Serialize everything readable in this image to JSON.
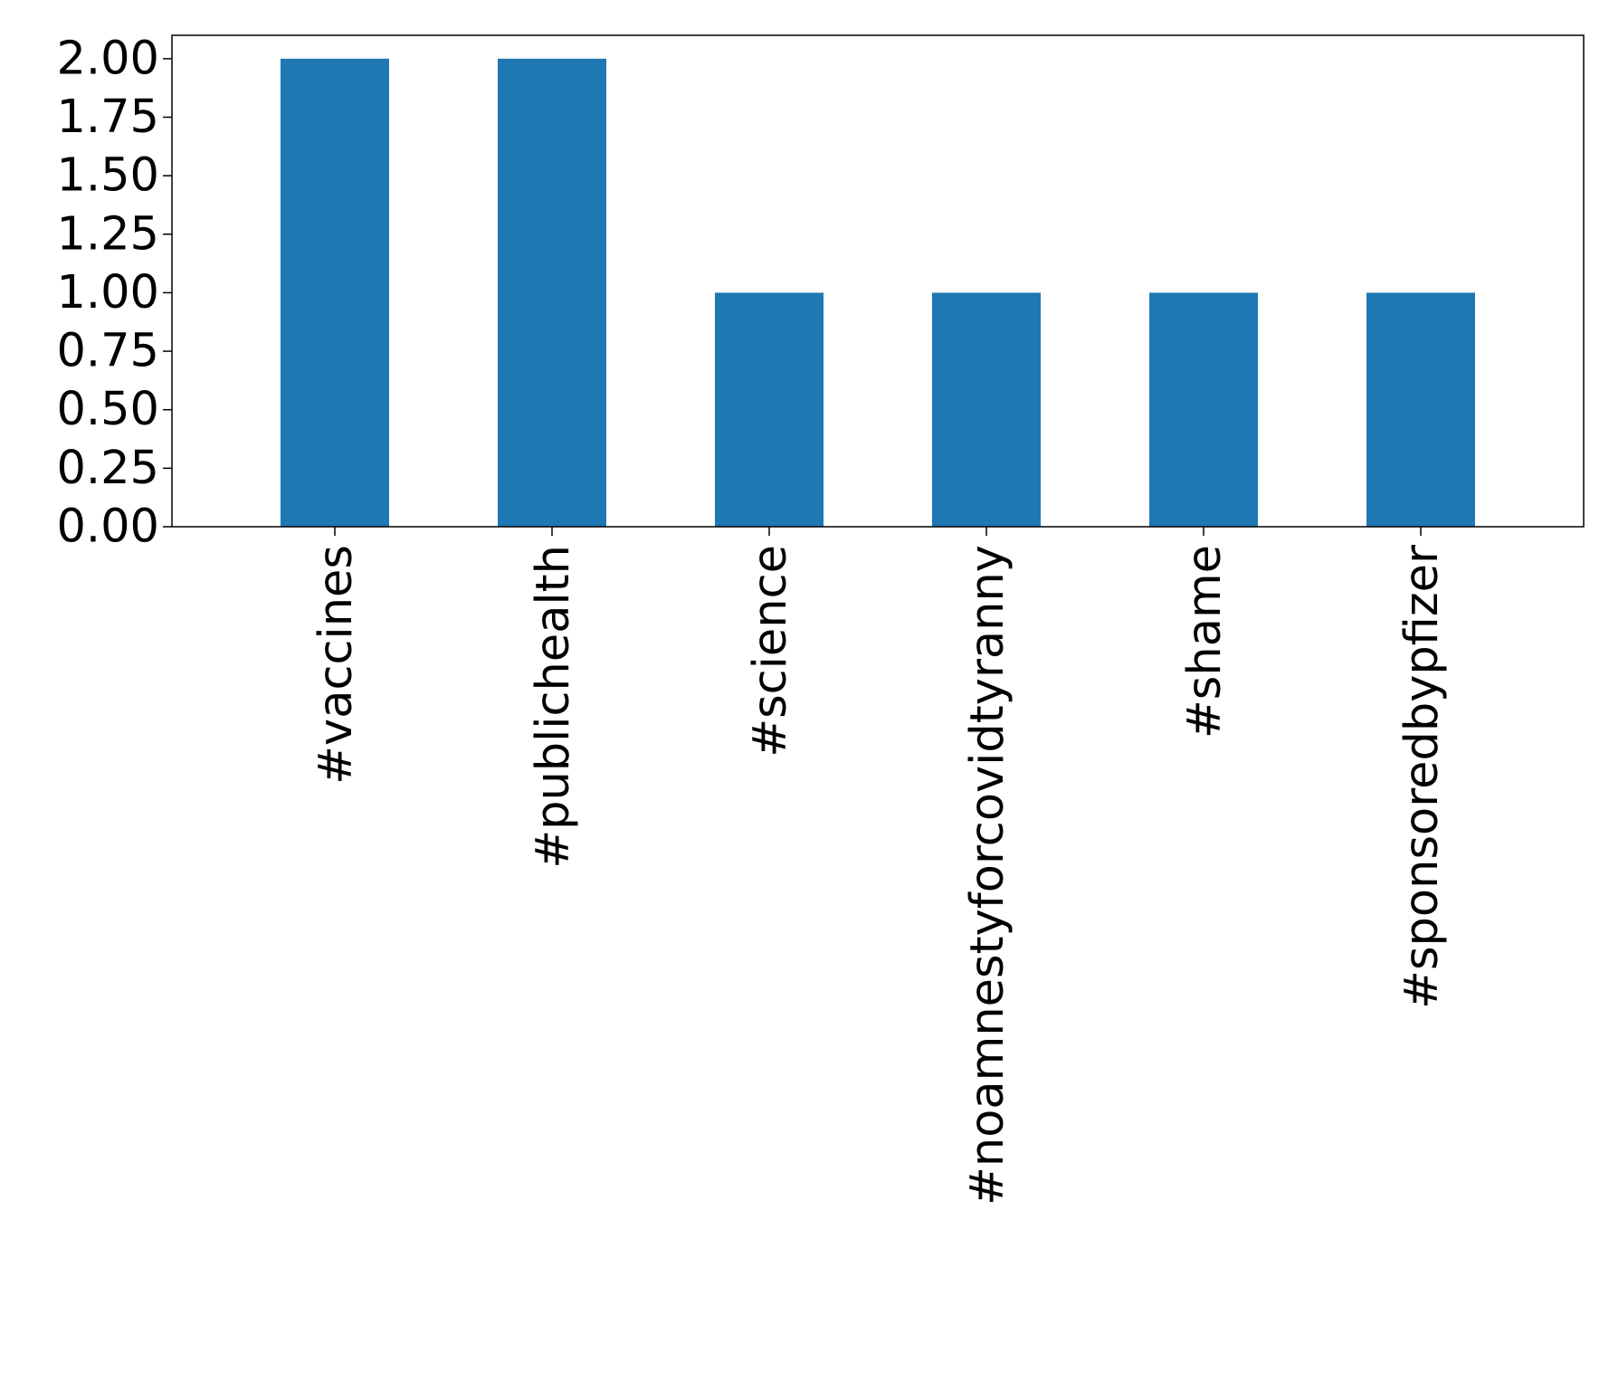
{
  "chart_data": {
    "type": "bar",
    "categories": [
      "#vaccines",
      "#publichealth",
      "#science",
      "#noamnestyforcovidtyranny",
      "#shame",
      "#sponsoredbypfizer"
    ],
    "values": [
      2,
      2,
      1,
      1,
      1,
      1
    ],
    "title": "",
    "xlabel": "",
    "ylabel": "",
    "ylim": [
      0,
      2.1
    ],
    "yticks": [
      0,
      0.25,
      0.5,
      0.75,
      1.0,
      1.25,
      1.5,
      1.75,
      2.0
    ],
    "ytick_labels": [
      "0.00",
      "0.25",
      "0.50",
      "0.75",
      "1.00",
      "1.25",
      "1.50",
      "1.75",
      "2.00"
    ],
    "grid": false,
    "legend": "none",
    "bar_color": "#1f77b4"
  }
}
